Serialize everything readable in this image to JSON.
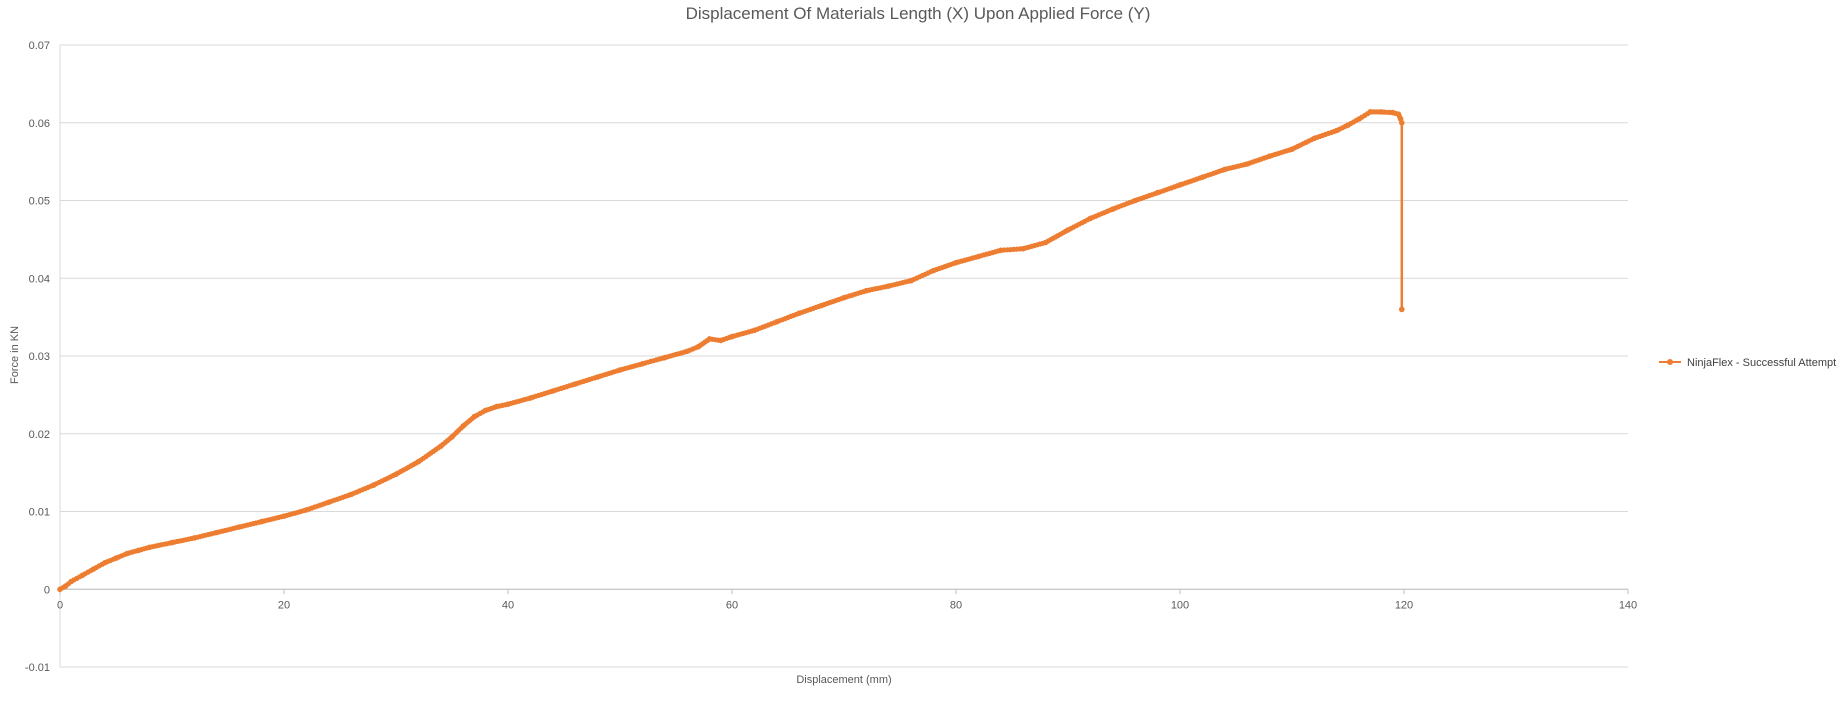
{
  "chart_data": {
    "type": "scatter",
    "title": "Displacement Of Materials Length (X) Upon Applied Force (Y)",
    "xlabel": "Displacement (mm)",
    "ylabel": "Force in KN",
    "xlim": [
      0,
      140
    ],
    "ylim": [
      -0.01,
      0.07
    ],
    "xticks": [
      0,
      20,
      40,
      60,
      80,
      100,
      120,
      140
    ],
    "yticks": [
      -0.01,
      0,
      0.01,
      0.02,
      0.03,
      0.04,
      0.05,
      0.06,
      0.07
    ],
    "ytick_labels": [
      "-0.01",
      "0",
      "0.01",
      "0.02",
      "0.03",
      "0.04",
      "0.05",
      "0.06",
      "0.07"
    ],
    "grid": true,
    "legend_position": "right",
    "series": [
      {
        "name": "NinjaFlex - Successful Attempt",
        "color": "#ED7D31",
        "style": "line-with-markers",
        "x": [
          0,
          0.5,
          1,
          2,
          3,
          4,
          5,
          6,
          7,
          8,
          10,
          12,
          14,
          16,
          18,
          20,
          22,
          24,
          26,
          28,
          30,
          32,
          34,
          35,
          36,
          37,
          38,
          39,
          40,
          42,
          44,
          46,
          48,
          50,
          52,
          54,
          56,
          57,
          58,
          59,
          60,
          62,
          64,
          66,
          68,
          70,
          72,
          74,
          76,
          78,
          80,
          82,
          84,
          86,
          88,
          90,
          92,
          94,
          96,
          98,
          100,
          102,
          104,
          106,
          108,
          110,
          112,
          114,
          115,
          116,
          117,
          118,
          119,
          119.5,
          119.7,
          119.8,
          119.8
        ],
        "y": [
          0,
          0.0004,
          0.001,
          0.0018,
          0.0026,
          0.0034,
          0.004,
          0.0046,
          0.005,
          0.0054,
          0.006,
          0.0066,
          0.0073,
          0.008,
          0.0087,
          0.0094,
          0.0102,
          0.0112,
          0.0122,
          0.0134,
          0.0148,
          0.0164,
          0.0184,
          0.0196,
          0.021,
          0.0222,
          0.023,
          0.0235,
          0.0238,
          0.0246,
          0.0255,
          0.0264,
          0.0273,
          0.0282,
          0.029,
          0.0298,
          0.0306,
          0.0312,
          0.0322,
          0.032,
          0.0325,
          0.0333,
          0.0344,
          0.0355,
          0.0365,
          0.0375,
          0.0384,
          0.039,
          0.0397,
          0.041,
          0.042,
          0.0428,
          0.0436,
          0.0438,
          0.0446,
          0.0462,
          0.0477,
          0.0489,
          0.05,
          0.051,
          0.052,
          0.053,
          0.054,
          0.0547,
          0.0557,
          0.0566,
          0.058,
          0.059,
          0.0597,
          0.0605,
          0.0614,
          0.0614,
          0.0613,
          0.0611,
          0.0605,
          0.06,
          0.036
        ]
      }
    ]
  }
}
